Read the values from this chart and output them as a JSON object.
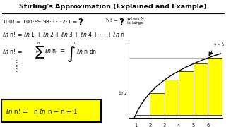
{
  "title": "Stirling's Approximation (Explained and Example)",
  "bg_color": "#ffffff",
  "bar_color": "#ffff00",
  "bar_edge_color": "#000000",
  "curve_color": "#000000",
  "highlight_box_color": "#ffff00",
  "highlight_box_edge": "#000000",
  "xlabels": [
    "1",
    "2",
    "3",
    "4",
    "5",
    "6"
  ],
  "bar_heights": [
    0.0,
    0.693,
    1.099,
    1.386,
    1.609,
    1.792
  ],
  "graph_xlim": [
    0.5,
    7.0
  ],
  "graph_ylim": [
    -0.1,
    2.3
  ]
}
